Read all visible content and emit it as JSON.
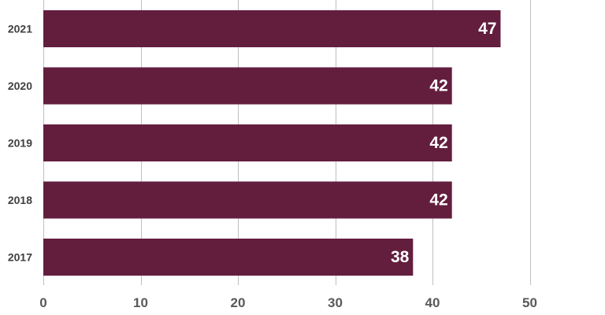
{
  "chart_data": {
    "type": "bar",
    "orientation": "horizontal",
    "title": "",
    "xlabel": "",
    "ylabel": "",
    "categories": [
      "2021",
      "2020",
      "2019",
      "2018",
      "2017"
    ],
    "values": [
      47,
      42,
      42,
      42,
      38
    ],
    "data_labels": [
      "47",
      "42",
      "42",
      "42",
      "38"
    ],
    "xlim": [
      0,
      57
    ],
    "x_ticks": [
      0,
      10,
      20,
      30,
      40,
      50
    ],
    "x_tick_labels": [
      "0",
      "10",
      "20",
      "30",
      "40",
      "50"
    ],
    "grid": true,
    "legend": "none",
    "colors": {
      "bar": "#631e3e",
      "grid": "#bfbfbf",
      "data_label": "#ffffff",
      "category_label": "#404040",
      "tick_label": "#595959"
    }
  }
}
